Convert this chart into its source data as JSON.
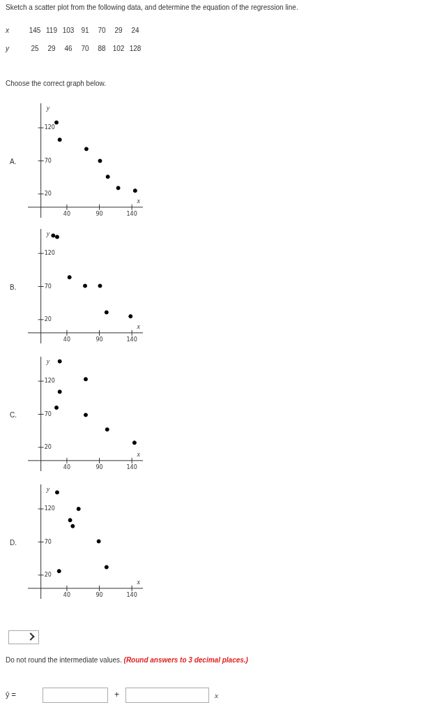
{
  "chart_data": [
    {
      "type": "other",
      "title": "Sketch a scatter plot from the following data, and determine the equation of the regression line.",
      "annotations": [
        "x 145 119 103 91 70 29 24",
        "y 25 29 46 70 88 102 128",
        "Choose the correct graph below.",
        "Do not round the intermediate values.",
        "(Round answers to 3 decimal places.)",
        "ŷ =",
        "+",
        "x"
      ]
    },
    {
      "type": "scatter",
      "xlabel": "x",
      "ylabel": "y",
      "x": [
        24,
        29,
        70,
        91,
        103,
        119,
        145
      ],
      "values": [
        128,
        102,
        88,
        70,
        46,
        29,
        25
      ],
      "color": "#000000",
      "marker": "circle",
      "xlim": [
        -20,
        157
      ],
      "ylim": [
        -16,
        157
      ],
      "xticks": [
        40,
        90,
        140
      ],
      "yticks": [
        20,
        70,
        120
      ],
      "annotations": [
        "A."
      ]
    },
    {
      "type": "scatter",
      "xlabel": "x",
      "ylabel": "y",
      "x": [
        19,
        25,
        44,
        68,
        91,
        101,
        138
      ],
      "values": [
        147,
        145,
        84,
        71,
        71,
        31,
        25
      ],
      "color": "#000000",
      "marker": "circle",
      "xlim": [
        -20,
        157
      ],
      "ylim": [
        -16,
        157
      ],
      "xticks": [
        40,
        90,
        140
      ],
      "yticks": [
        20,
        70,
        120
      ],
      "annotations": [
        "B."
      ]
    },
    {
      "type": "scatter",
      "xlabel": "x",
      "ylabel": "y",
      "x": [
        29,
        29,
        24,
        69,
        69,
        102,
        144
      ],
      "values": [
        150,
        104,
        80,
        123,
        69,
        47,
        27
      ],
      "color": "#000000",
      "marker": "circle",
      "xlim": [
        -20,
        157
      ],
      "ylim": [
        -16,
        157
      ],
      "xticks": [
        40,
        90,
        140
      ],
      "yticks": [
        20,
        70,
        120
      ],
      "annotations": [
        "C."
      ]
    },
    {
      "type": "scatter",
      "xlabel": "x",
      "ylabel": "y",
      "x": [
        25,
        58,
        45,
        49,
        89,
        101,
        28
      ],
      "values": [
        145,
        120,
        103,
        94,
        71,
        32,
        26
      ],
      "color": "#000000",
      "marker": "circle",
      "xlim": [
        -20,
        157
      ],
      "ylim": [
        -16,
        157
      ],
      "xticks": [
        40,
        90,
        140
      ],
      "yticks": [
        20,
        70,
        120
      ],
      "annotations": [
        "D."
      ]
    }
  ]
}
